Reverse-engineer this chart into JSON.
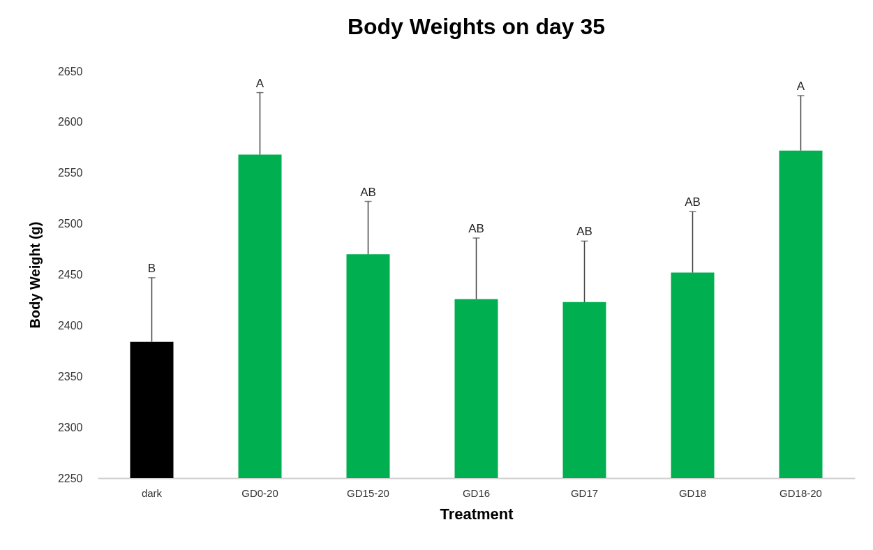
{
  "chart_data": {
    "type": "bar",
    "title": "Body Weights on day 35",
    "xlabel": "Treatment",
    "ylabel": "Body Weight (g)",
    "categories": [
      "dark",
      "GD0-20",
      "GD15-20",
      "GD16",
      "GD17",
      "GD18",
      "GD18-20"
    ],
    "values": [
      2384,
      2568,
      2470,
      2426,
      2423,
      2452,
      2572
    ],
    "colors": [
      "#000000",
      "#00b050",
      "#00b050",
      "#00b050",
      "#00b050",
      "#00b050",
      "#00b050"
    ],
    "errors": [
      [
        2384,
        2447
      ],
      [
        2568,
        2629
      ],
      [
        2470,
        2522
      ],
      [
        2426,
        2486
      ],
      [
        2423,
        2483
      ],
      [
        2452,
        2512
      ],
      [
        2572,
        2626
      ]
    ],
    "annotations": [
      {
        "text": "B",
        "x": "dark",
        "y": 2447
      },
      {
        "text": "A",
        "x": "GD0-20",
        "y": 2629
      },
      {
        "text": "AB",
        "x": "GD15-20",
        "y": 2522
      },
      {
        "text": "AB",
        "x": "GD16",
        "y": 2486
      },
      {
        "text": "AB",
        "x": "GD17",
        "y": 2483
      },
      {
        "text": "AB",
        "x": "GD18",
        "y": 2512
      },
      {
        "text": "A",
        "x": "GD18-20",
        "y": 2626
      }
    ],
    "ylim": [
      2250,
      2650
    ],
    "yticks": [
      2250,
      2300,
      2350,
      2400,
      2450,
      2500,
      2550,
      2600,
      2650
    ],
    "grid": false,
    "legend": false
  }
}
